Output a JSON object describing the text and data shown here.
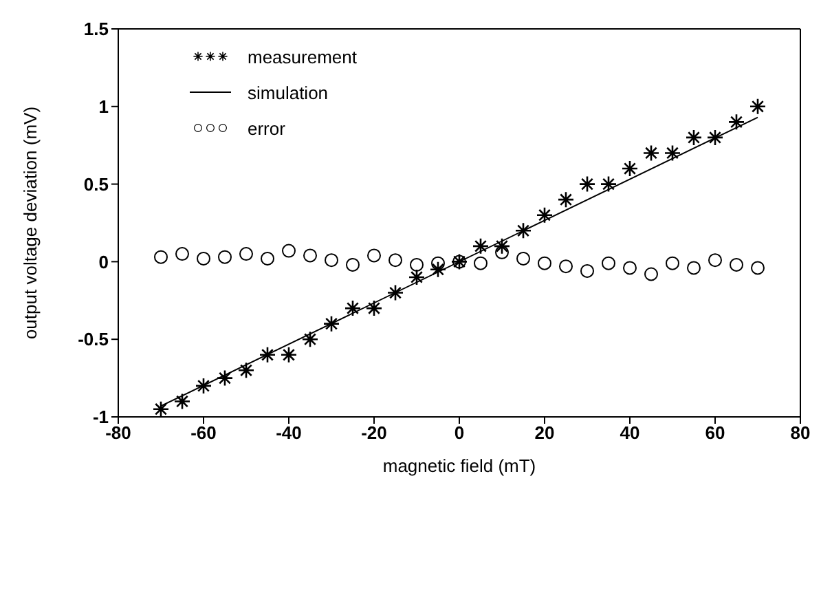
{
  "chart_data": {
    "type": "scatter",
    "xlabel": "magnetic field (mT)",
    "ylabel": "output voltage deviation (mV)",
    "xlim": [
      -80,
      80
    ],
    "xticks": [
      -80,
      -60,
      -40,
      -20,
      0,
      20,
      40,
      60,
      80
    ],
    "ylim": [
      -1,
      1.5
    ],
    "yticks": [
      -1,
      -0.5,
      0,
      0.5,
      1,
      1.5
    ],
    "legend": "top left",
    "series": [
      {
        "name": "measurement",
        "marker": "cross",
        "color": "#000000",
        "x": [
          -70,
          -65,
          -60,
          -55,
          -50,
          -45,
          -40,
          -35,
          -30,
          -25,
          -20,
          -15,
          -10,
          -5,
          0,
          5,
          10,
          15,
          20,
          25,
          30,
          35,
          40,
          45,
          50,
          55,
          60,
          65,
          70
        ],
        "values": [
          -0.95,
          -0.9,
          -0.8,
          -0.75,
          -0.7,
          -0.6,
          -0.6,
          -0.5,
          -0.4,
          -0.3,
          -0.3,
          -0.2,
          -0.1,
          -0.05,
          0,
          0.1,
          0.1,
          0.2,
          0.3,
          0.4,
          0.5,
          0.5,
          0.6,
          0.7,
          0.7,
          0.8,
          0.8,
          0.9,
          1.0
        ]
      },
      {
        "name": "simulation",
        "type": "line",
        "line_style": "solid",
        "marker": "none",
        "color": "#000000",
        "x": [
          -70,
          70
        ],
        "values": [
          -0.93,
          0.93
        ]
      },
      {
        "name": "error",
        "marker": "circle",
        "color": "#000000",
        "x": [
          -70,
          -65,
          -60,
          -55,
          -50,
          -45,
          -40,
          -35,
          -30,
          -25,
          -20,
          -15,
          -10,
          -5,
          0,
          5,
          10,
          15,
          20,
          25,
          30,
          35,
          40,
          45,
          50,
          55,
          60,
          65,
          70
        ],
        "values": [
          0.03,
          0.05,
          0.02,
          0.03,
          0.05,
          0.02,
          0.07,
          0.04,
          0.01,
          -0.02,
          0.04,
          0.01,
          -0.02,
          -0.01,
          0,
          -0.01,
          0.06,
          0.02,
          -0.01,
          -0.03,
          -0.06,
          -0.01,
          -0.04,
          -0.08,
          -0.01,
          -0.04,
          0.01,
          -0.02,
          -0.04
        ]
      }
    ]
  }
}
